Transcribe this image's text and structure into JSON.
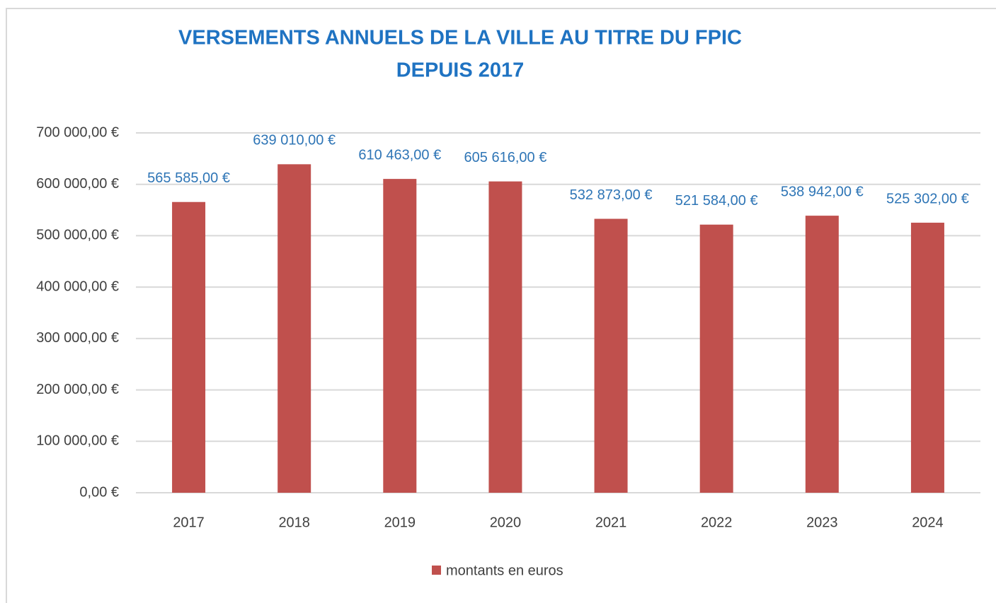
{
  "chart_data": {
    "type": "bar",
    "title": [
      "VERSEMENTS ANNUELS DE LA VILLE  AU TITRE DU FPIC",
      "DEPUIS 2017"
    ],
    "categories": [
      "2017",
      "2018",
      "2019",
      "2020",
      "2021",
      "2022",
      "2023",
      "2024"
    ],
    "series": [
      {
        "name": "montants en euros",
        "color": "#c0504d",
        "values": [
          565585,
          639010,
          610463,
          605616,
          532873,
          521584,
          538942,
          525302
        ],
        "value_labels": [
          "565 585,00 €",
          "639 010,00 €",
          "610 463,00 €",
          "605 616,00 €",
          "532 873,00 €",
          "521 584,00 €",
          "538 942,00 €",
          "525 302,00 €"
        ]
      }
    ],
    "ylim": [
      0,
      700000
    ],
    "yticks": [
      {
        "value": 0,
        "label": "0,00 €"
      },
      {
        "value": 100000,
        "label": "100 000,00 €"
      },
      {
        "value": 200000,
        "label": "200 000,00 €"
      },
      {
        "value": 300000,
        "label": "300 000,00 €"
      },
      {
        "value": 400000,
        "label": "400 000,00 €"
      },
      {
        "value": 500000,
        "label": "500 000,00 €"
      },
      {
        "value": 600000,
        "label": "600 000,00 €"
      },
      {
        "value": 700000,
        "label": "700 000,00 €"
      }
    ],
    "grid": true,
    "legend": "bottom"
  }
}
